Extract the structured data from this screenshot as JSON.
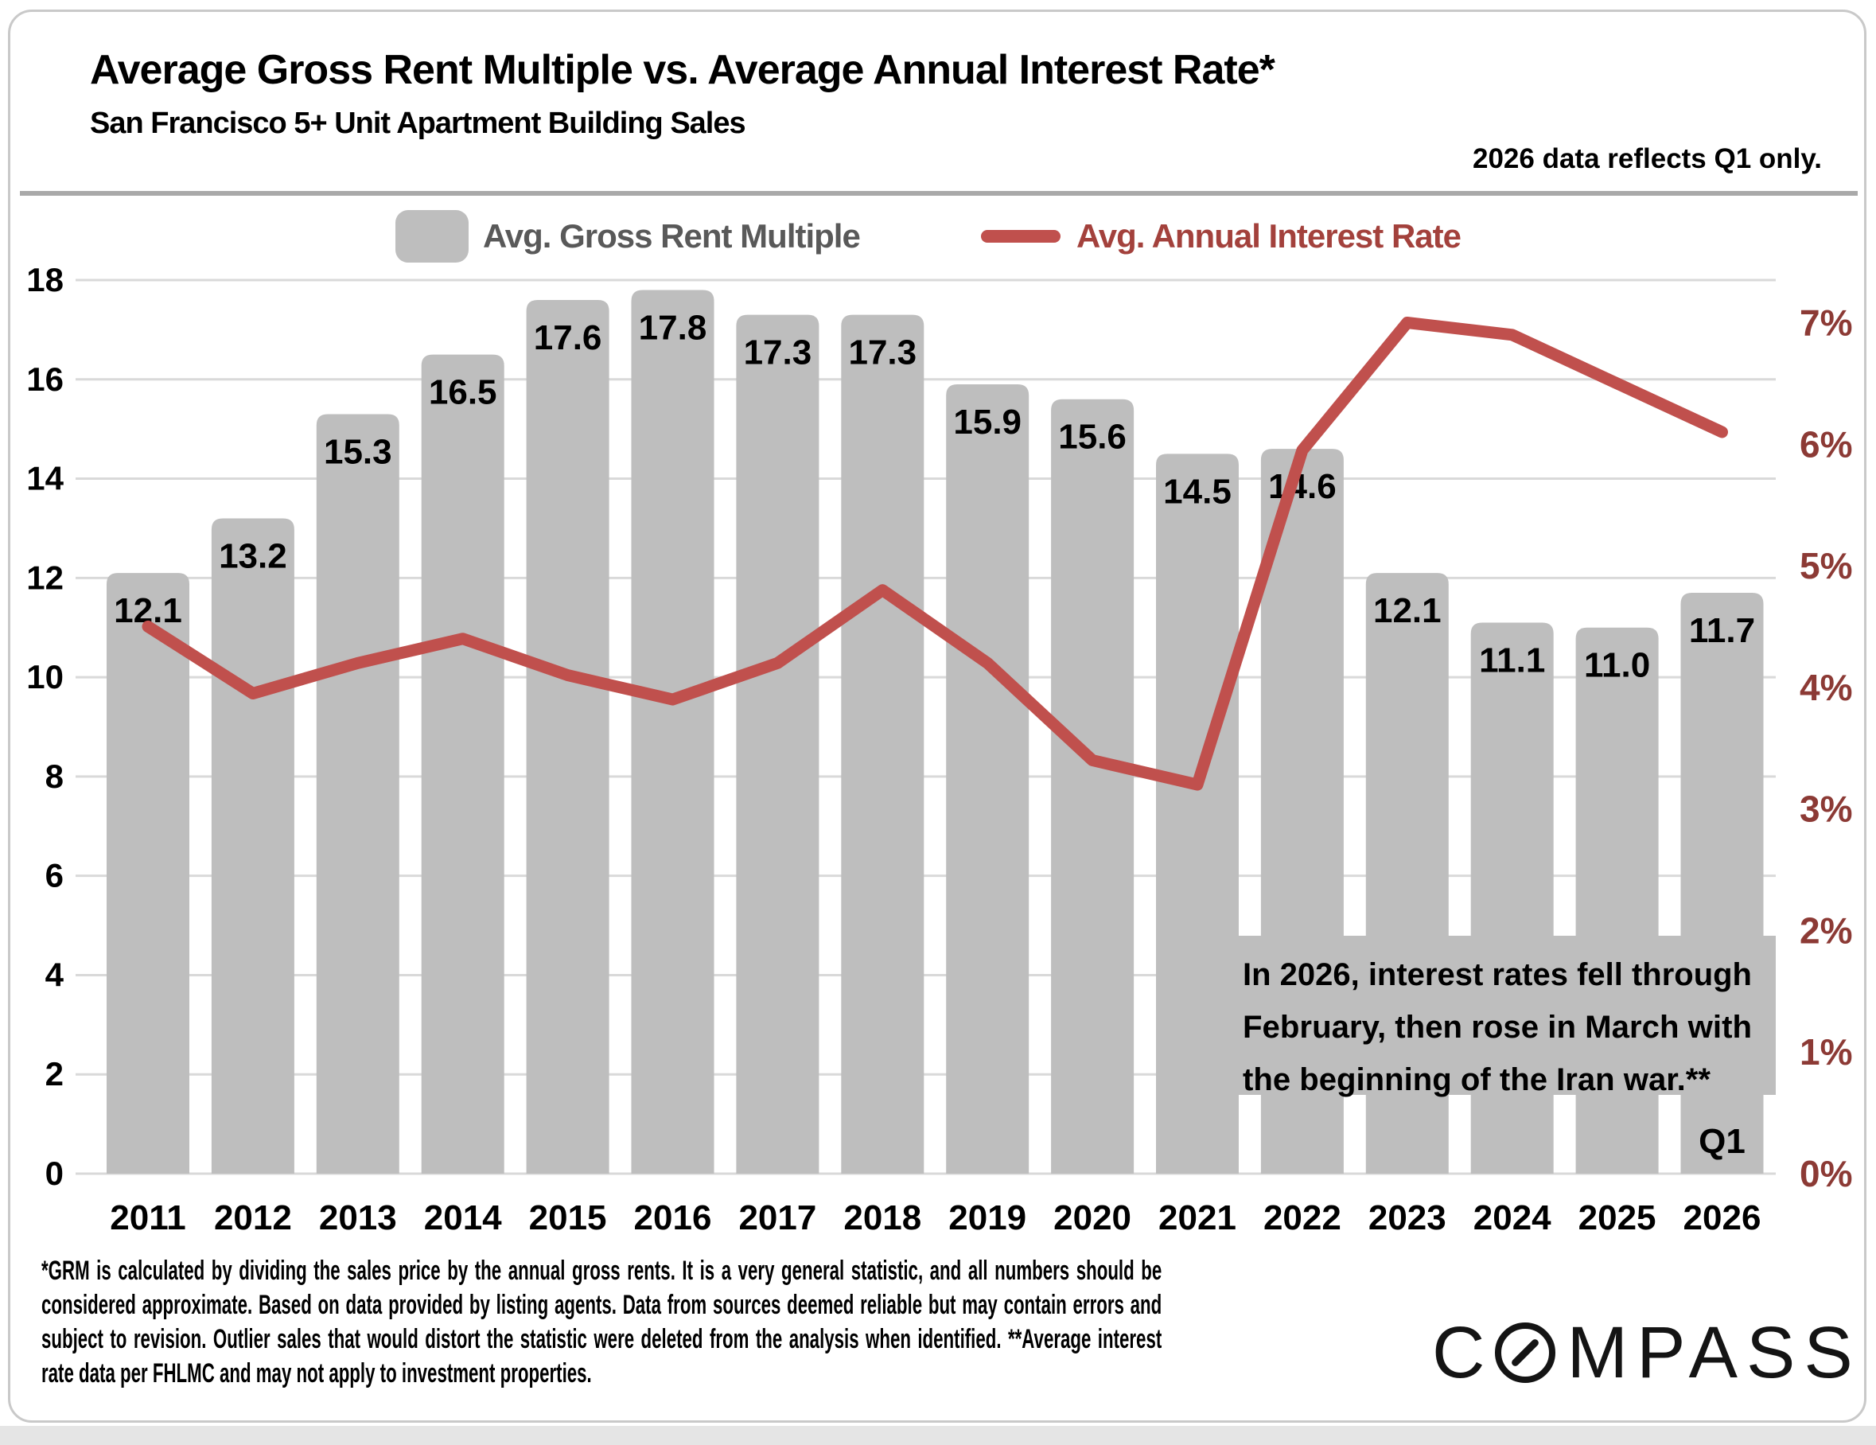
{
  "page": {
    "title": "Average Gross Rent Multiple vs. Average Annual Interest Rate*",
    "subtitle": "San Francisco 5+ Unit Apartment Building Sales",
    "top_note": "2026 data reflects Q1 only.",
    "footnote": "*GRM is calculated by dividing the sales price by the annual gross rents. It is a very general statistic, and all numbers should be considered approximate. Based on data provided by listing agents. Data from sources deemed reliable but may contain errors and subject to revision. Outlier sales that would distort the statistic were deleted from the analysis when identified. **Average interest rate data per FHLMC and may not apply to investment properties.",
    "brand": "COMPASS"
  },
  "legend": {
    "bar_label": "Avg. Gross Rent Multiple",
    "line_label": "Avg. Annual Interest Rate"
  },
  "chart_data": {
    "type": "bar",
    "subtype": "bar+line combo, dual axis",
    "title": "Average Gross Rent Multiple vs. Average Annual Interest Rate*",
    "categories": [
      "2011",
      "2012",
      "2013",
      "2014",
      "2015",
      "2016",
      "2017",
      "2018",
      "2019",
      "2020",
      "2021",
      "2022",
      "2023",
      "2024",
      "2025",
      "2026"
    ],
    "series": [
      {
        "name": "Avg. Gross Rent Multiple",
        "type": "bar",
        "axis": "left",
        "values": [
          12.1,
          13.2,
          15.3,
          16.5,
          17.6,
          17.8,
          17.3,
          17.3,
          15.9,
          15.6,
          14.5,
          14.6,
          12.1,
          11.1,
          11.0,
          11.7
        ]
      },
      {
        "name": "Avg. Annual Interest Rate",
        "type": "line",
        "axis": "right",
        "values": [
          4.5,
          3.95,
          4.2,
          4.4,
          4.1,
          3.9,
          4.2,
          4.8,
          4.2,
          3.4,
          3.2,
          5.95,
          7.0,
          6.9,
          6.5,
          6.1
        ]
      }
    ],
    "left_axis": {
      "min": 0,
      "max": 18,
      "tick_step": 2,
      "tick_labels": [
        "0",
        "2",
        "4",
        "6",
        "8",
        "10",
        "12",
        "14",
        "16",
        "18"
      ]
    },
    "right_axis": {
      "min_percent": 0,
      "max_percent_label": 7,
      "percent_at_plot_top": 7.35,
      "tick_labels": [
        "0%",
        "1%",
        "2%",
        "3%",
        "4%",
        "5%",
        "6%",
        "7%"
      ]
    },
    "grid": true,
    "legend_position": "top",
    "annotation_lines": [
      "In 2026, interest rates fell through",
      "February, then rose in March with",
      "the beginning of the Iran war.**"
    ],
    "last_bar_tag": "Q1"
  },
  "colors": {
    "bar": "#BEBEBE",
    "line": "#C0504D",
    "legend_bar_text": "#595959",
    "legend_line_text": "#A3413C",
    "right_axis_text": "#8C3A35",
    "axis_text": "#000000",
    "grid": "#D9D9D9",
    "divider": "#A9A9A9",
    "annotation_box": "#BEBEBE",
    "annotation_text": "#000000",
    "card_border": "#C9C9C9",
    "bottom_strip": "#E5E5E5"
  }
}
